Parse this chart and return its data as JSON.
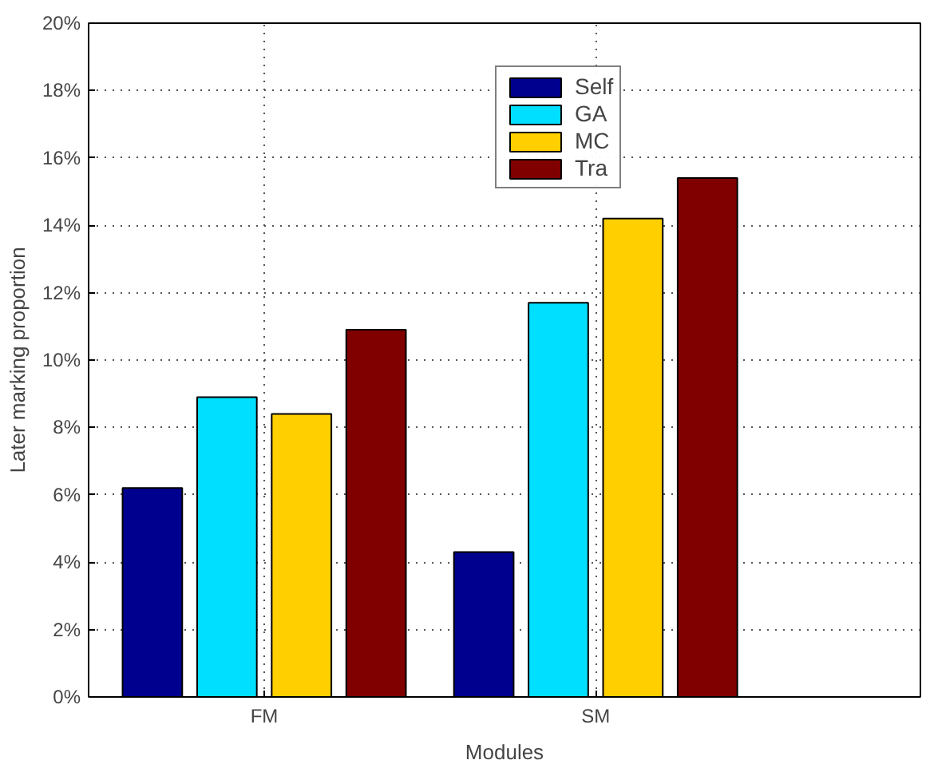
{
  "chart_data": {
    "type": "bar",
    "xlabel": "Modules",
    "ylabel": "Later marking proportion",
    "categories": [
      "FM",
      "SM"
    ],
    "series": [
      {
        "name": "Self",
        "color": "#00008f",
        "values": [
          6.2,
          4.3
        ]
      },
      {
        "name": "GA",
        "color": "#00dfff",
        "values": [
          8.9,
          11.7
        ]
      },
      {
        "name": "MC",
        "color": "#ffcf00",
        "values": [
          8.4,
          14.2
        ]
      },
      {
        "name": "Tra",
        "color": "#800000",
        "values": [
          10.9,
          15.4
        ]
      }
    ],
    "ylim": [
      0,
      20
    ],
    "yticks": [
      {
        "value": 0,
        "label": "0%"
      },
      {
        "value": 2,
        "label": "2%"
      },
      {
        "value": 4,
        "label": "4%"
      },
      {
        "value": 6,
        "label": "6%"
      },
      {
        "value": 8,
        "label": "8%"
      },
      {
        "value": 10,
        "label": "10%"
      },
      {
        "value": 12,
        "label": "12%"
      },
      {
        "value": 14,
        "label": "14%"
      },
      {
        "value": 16,
        "label": "16%"
      },
      {
        "value": 18,
        "label": "18%"
      },
      {
        "value": 20,
        "label": "20%"
      }
    ],
    "grid": true,
    "legend": "top"
  }
}
